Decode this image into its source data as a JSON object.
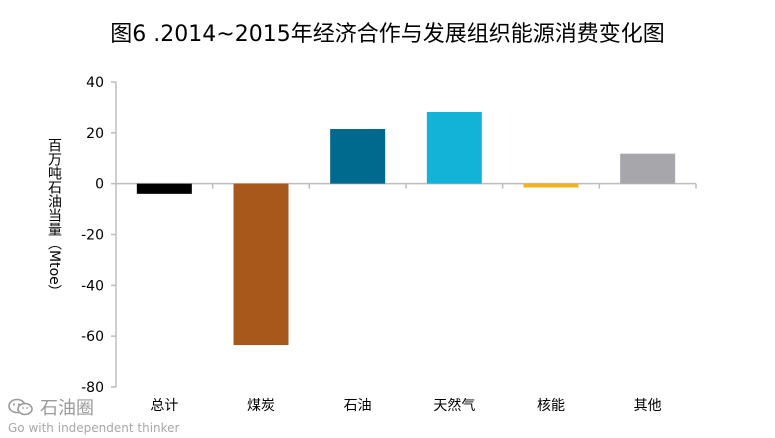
{
  "chart_data": {
    "type": "bar",
    "title": "图6 .2014~2015年经济合作与发展组织能源消费变化图",
    "ylabel": "百万吨石油当量（Mtoe）",
    "xlabel": "",
    "categories": [
      "总计",
      "煤炭",
      "石油",
      "天然气",
      "核能",
      "其他"
    ],
    "values": [
      -4,
      -63.5,
      21.5,
      28.2,
      -1.5,
      11.8
    ],
    "colors": [
      "#000000",
      "#a9581b",
      "#006a8e",
      "#12b3d6",
      "#f2b21d",
      "#a6a6ab"
    ],
    "ylim": [
      -80,
      40
    ],
    "yticks": [
      40,
      20,
      0,
      -20,
      -40,
      -60,
      -80
    ],
    "grid": false,
    "legend": "none"
  },
  "watermark": {
    "name": "石油圈",
    "slogan": "Go with independent thinker"
  }
}
